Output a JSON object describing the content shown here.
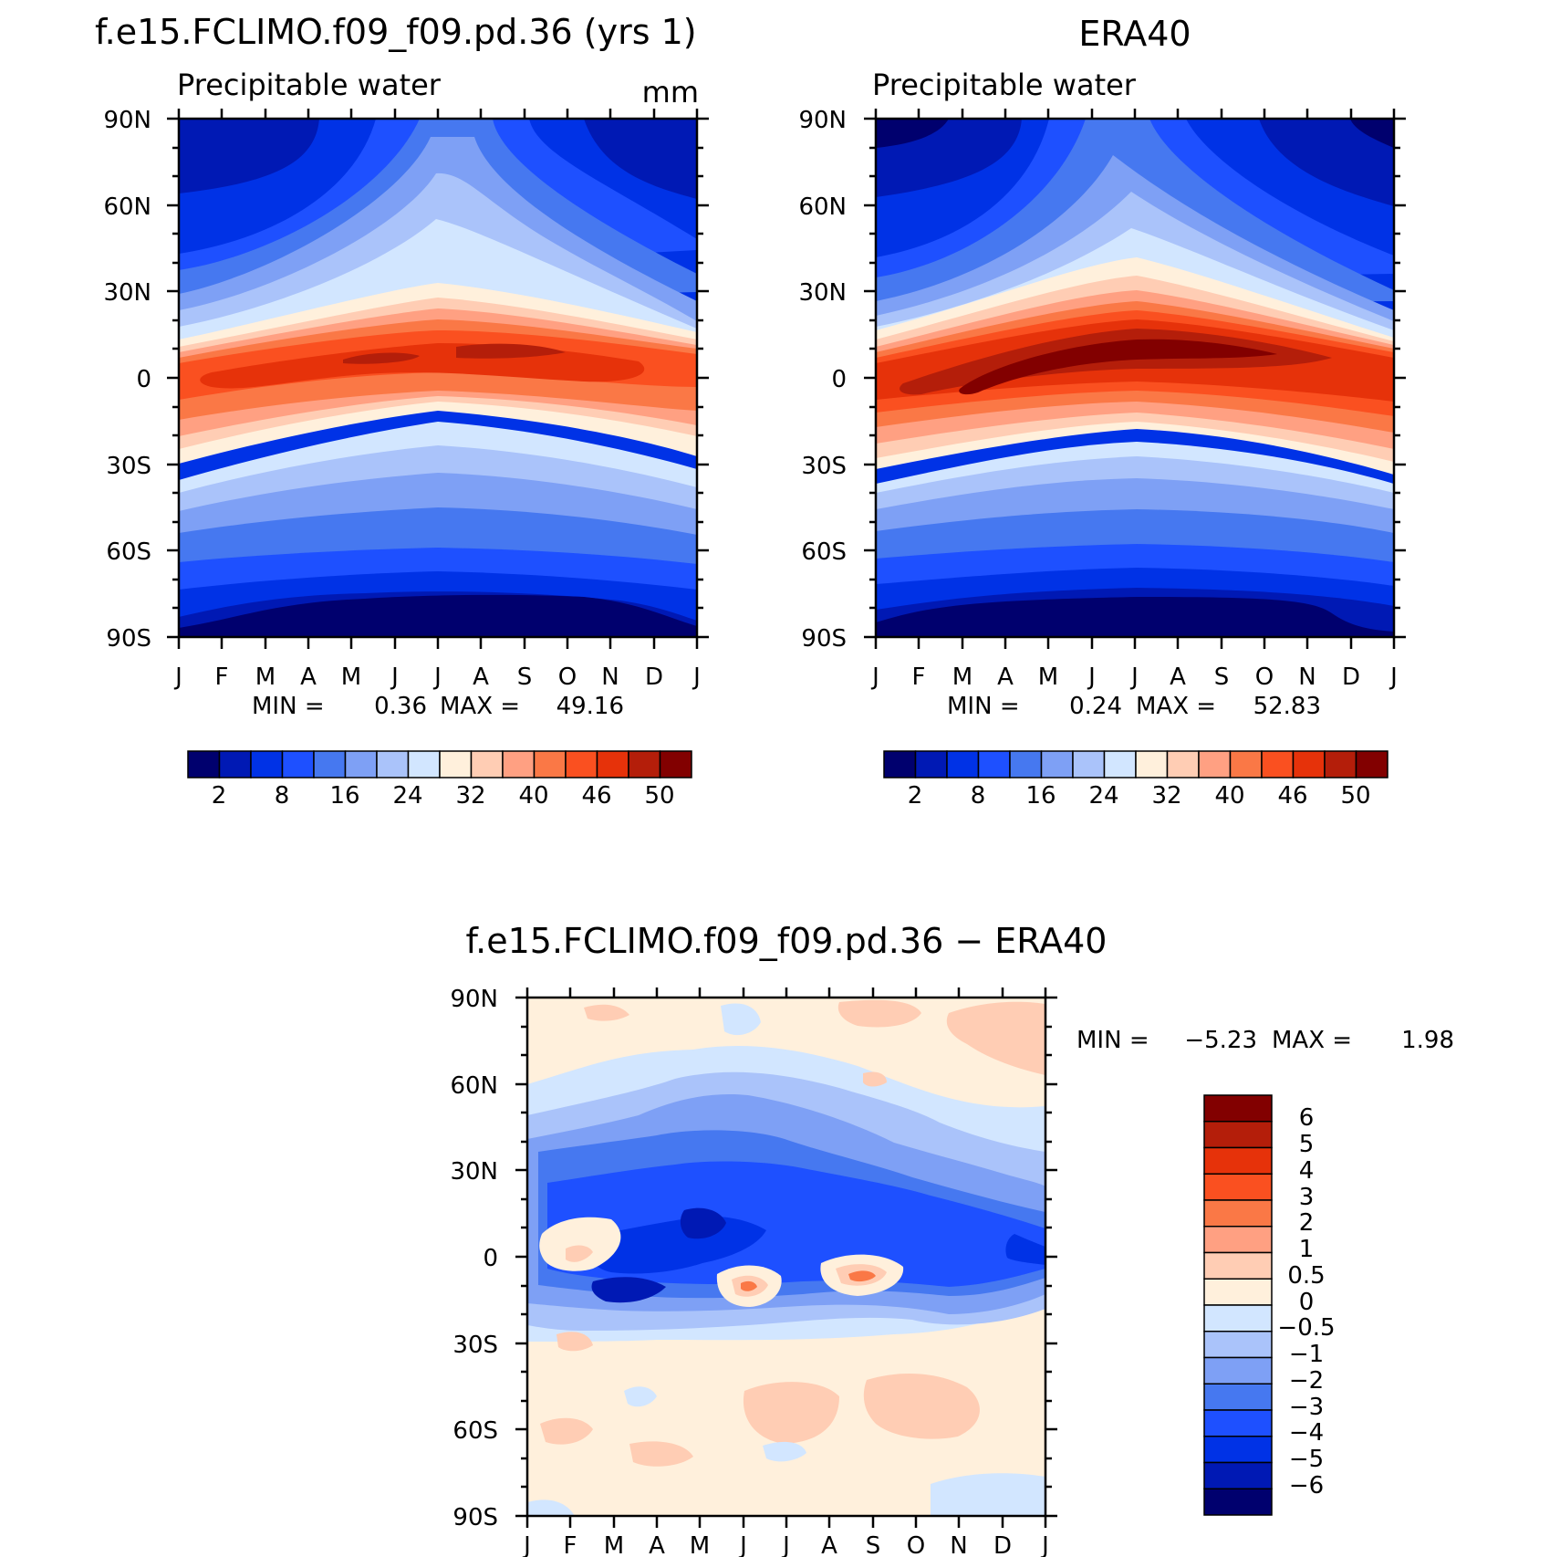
{
  "chart_data": [
    {
      "type": "heatmap",
      "title": "f.e15.FCLIMO.f09_f09.pd.36 (yrs 1)",
      "subtitle": "Precipitable water",
      "units": "mm",
      "x_tick_labels": [
        "J",
        "F",
        "M",
        "A",
        "M",
        "J",
        "J",
        "A",
        "S",
        "O",
        "N",
        "D",
        "J"
      ],
      "y_tick_labels": [
        "90N",
        "60N",
        "30N",
        "0",
        "30S",
        "60S",
        "90S"
      ],
      "ylim": [
        -90,
        90
      ],
      "min_label": "MIN =",
      "min_value": "0.36",
      "max_label": "MAX =",
      "max_value": "49.16",
      "colorbar_ticks": [
        "2",
        "8",
        "16",
        "24",
        "32",
        "40",
        "46",
        "50"
      ],
      "colorbar_colors": [
        "#00006e",
        "#0019b4",
        "#0032e6",
        "#1e50ff",
        "#4678f0",
        "#7ea0f5",
        "#aac3fa",
        "#d2e6ff",
        "#fff0dc",
        "#ffcdb4",
        "#ffa082",
        "#fa7846",
        "#fa5020",
        "#e6320a",
        "#b41e0a",
        "#820000"
      ]
    },
    {
      "type": "heatmap",
      "title": "ERA40",
      "subtitle": "Precipitable water",
      "x_tick_labels": [
        "J",
        "F",
        "M",
        "A",
        "M",
        "J",
        "J",
        "A",
        "S",
        "O",
        "N",
        "D",
        "J"
      ],
      "y_tick_labels": [
        "90N",
        "60N",
        "30N",
        "0",
        "30S",
        "60S",
        "90S"
      ],
      "ylim": [
        -90,
        90
      ],
      "min_label": "MIN =",
      "min_value": "0.24",
      "max_label": "MAX =",
      "max_value": "52.83",
      "colorbar_ticks": [
        "2",
        "8",
        "16",
        "24",
        "32",
        "40",
        "46",
        "50"
      ],
      "colorbar_colors": [
        "#00006e",
        "#0019b4",
        "#0032e6",
        "#1e50ff",
        "#4678f0",
        "#7ea0f5",
        "#aac3fa",
        "#d2e6ff",
        "#fff0dc",
        "#ffcdb4",
        "#ffa082",
        "#fa7846",
        "#fa5020",
        "#e6320a",
        "#b41e0a",
        "#820000"
      ]
    },
    {
      "type": "heatmap",
      "title": "f.e15.FCLIMO.f09_f09.pd.36 − ERA40",
      "x_tick_labels": [
        "J",
        "F",
        "M",
        "A",
        "M",
        "J",
        "J",
        "A",
        "S",
        "O",
        "N",
        "D",
        "J"
      ],
      "y_tick_labels": [
        "90N",
        "60N",
        "30N",
        "0",
        "30S",
        "60S",
        "90S"
      ],
      "ylim": [
        -90,
        90
      ],
      "min_label": "MIN =",
      "min_value": "−5.23",
      "max_label": "MAX =",
      "max_value": "1.98",
      "colorbar_ticks": [
        "6",
        "5",
        "4",
        "3",
        "2",
        "1",
        "0.5",
        "0",
        "−0.5",
        "−1",
        "−2",
        "−3",
        "−4",
        "−5",
        "−6"
      ],
      "colorbar_colors": [
        "#820000",
        "#b41e0a",
        "#e6320a",
        "#fa5020",
        "#fa7846",
        "#ffa082",
        "#ffcdb4",
        "#fff0dc",
        "#d2e6ff",
        "#aac3fa",
        "#7ea0f5",
        "#4678f0",
        "#1e50ff",
        "#0032e6",
        "#0019b4",
        "#00006e"
      ]
    }
  ]
}
